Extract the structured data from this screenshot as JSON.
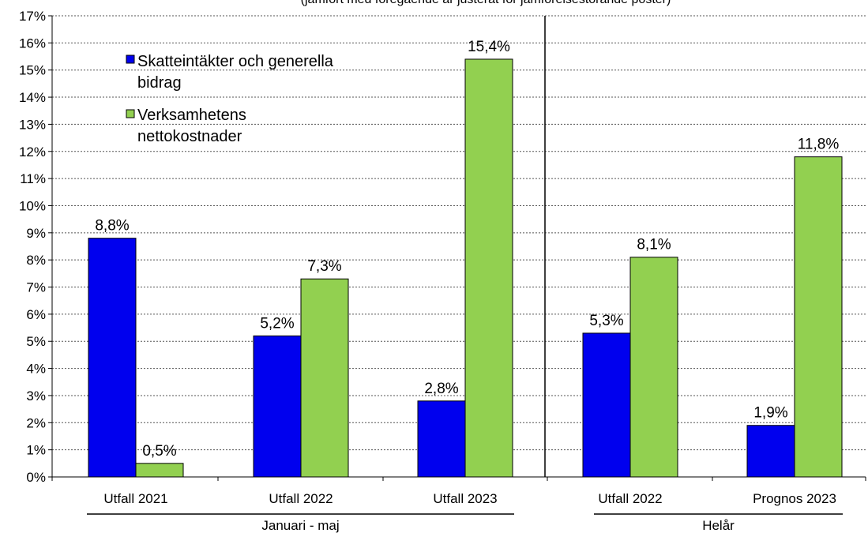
{
  "chart_data": {
    "type": "bar",
    "subtitle": "(jämfört med föregående år justerat för jämförelsestörande poster)",
    "ylim": [
      0,
      17
    ],
    "y_ticks": [
      "0%",
      "1%",
      "2%",
      "3%",
      "4%",
      "5%",
      "6%",
      "7%",
      "8%",
      "9%",
      "10%",
      "11%",
      "12%",
      "13%",
      "14%",
      "15%",
      "16%",
      "17%"
    ],
    "categories": [
      "Utfall 2021",
      "Utfall 2022",
      "Utfall 2023",
      "Utfall 2022",
      "Prognos 2023"
    ],
    "groups": [
      {
        "label": "Januari - maj",
        "categories": [
          0,
          1,
          2
        ]
      },
      {
        "label": "Helår",
        "categories": [
          3,
          4
        ]
      }
    ],
    "series": [
      {
        "name": "Skatteintäkter och generella bidrag",
        "legend_lines": [
          "Skatteintäkter och generella",
          "bidrag"
        ],
        "color": "#0000EE",
        "values": [
          8.8,
          5.2,
          2.8,
          5.3,
          1.9
        ],
        "labels": [
          "8,8%",
          "5,2%",
          "2,8%",
          "5,3%",
          "1,9%"
        ]
      },
      {
        "name": "Verksamhetens nettokostnader",
        "legend_lines": [
          "Verksamhetens",
          "nettokostnader"
        ],
        "color": "#92D050",
        "values": [
          0.5,
          7.3,
          15.4,
          8.1,
          11.8
        ],
        "labels": [
          "0,5%",
          "7,3%",
          "15,4%",
          "8,1%",
          "11,8%"
        ]
      }
    ],
    "grid": true,
    "legend_position": "top-left"
  }
}
